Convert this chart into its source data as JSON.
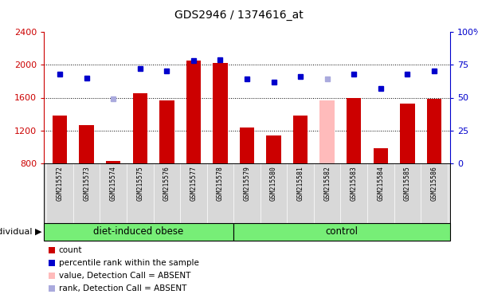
{
  "title": "GDS2946 / 1374616_at",
  "samples": [
    "GSM215572",
    "GSM215573",
    "GSM215574",
    "GSM215575",
    "GSM215576",
    "GSM215577",
    "GSM215578",
    "GSM215579",
    "GSM215580",
    "GSM215581",
    "GSM215582",
    "GSM215583",
    "GSM215584",
    "GSM215585",
    "GSM215586"
  ],
  "bar_values": [
    1380,
    1270,
    830,
    1650,
    1570,
    2050,
    2020,
    1240,
    1140,
    1380,
    1570,
    1600,
    980,
    1530,
    1590
  ],
  "bar_colors": [
    "#cc0000",
    "#cc0000",
    "#cc0000",
    "#cc0000",
    "#cc0000",
    "#cc0000",
    "#cc0000",
    "#cc0000",
    "#cc0000",
    "#cc0000",
    "#ffbbbb",
    "#cc0000",
    "#cc0000",
    "#cc0000",
    "#cc0000"
  ],
  "dot_values_pct": [
    68,
    65,
    49,
    72,
    70,
    78,
    79,
    64,
    62,
    66,
    64,
    68,
    57,
    68,
    70
  ],
  "dot_colors": [
    "#0000cc",
    "#0000cc",
    "#aaaadd",
    "#0000cc",
    "#0000cc",
    "#0000cc",
    "#0000cc",
    "#0000cc",
    "#0000cc",
    "#0000cc",
    "#aaaadd",
    "#0000cc",
    "#0000cc",
    "#0000cc",
    "#0000cc"
  ],
  "group1_label": "diet-induced obese",
  "group1_count": 7,
  "group2_label": "control",
  "group2_count": 8,
  "individual_label": "individual",
  "ylim_left": [
    800,
    2400
  ],
  "ylim_right": [
    0,
    100
  ],
  "yticks_left": [
    800,
    1200,
    1600,
    2000,
    2400
  ],
  "yticks_right": [
    0,
    25,
    50,
    75,
    100
  ],
  "hlines": [
    1200,
    1600,
    2000
  ],
  "left_axis_color": "#cc0000",
  "right_axis_color": "#0000cc",
  "legend_items": [
    {
      "label": "count",
      "color": "#cc0000"
    },
    {
      "label": "percentile rank within the sample",
      "color": "#0000cc"
    },
    {
      "label": "value, Detection Call = ABSENT",
      "color": "#ffbbbb"
    },
    {
      "label": "rank, Detection Call = ABSENT",
      "color": "#aaaadd"
    }
  ],
  "sample_bg": "#d8d8d8",
  "plot_bg": "#ffffff",
  "group_bg": "#77ee77",
  "figsize": [
    6.0,
    3.84
  ],
  "dpi": 100
}
